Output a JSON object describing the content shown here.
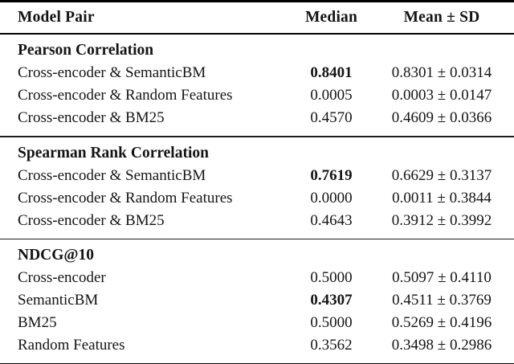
{
  "table": {
    "columns": [
      "Model Pair",
      "Median",
      "Mean ± SD"
    ],
    "sections": [
      {
        "title": "Pearson Correlation",
        "rows": [
          {
            "model": "Cross-encoder & SemanticBM",
            "median": "0.8401",
            "median_bold": true,
            "mean_sd": "0.8301 ± 0.0314"
          },
          {
            "model": "Cross-encoder & Random Features",
            "median": "0.0005",
            "median_bold": false,
            "mean_sd": "0.0003 ± 0.0147"
          },
          {
            "model": "Cross-encoder & BM25",
            "median": "0.4570",
            "median_bold": false,
            "mean_sd": "0.4609 ± 0.0366"
          }
        ]
      },
      {
        "title": "Spearman Rank Correlation",
        "rows": [
          {
            "model": "Cross-encoder & SemanticBM",
            "median": "0.7619",
            "median_bold": true,
            "mean_sd": "0.6629 ± 0.3137"
          },
          {
            "model": "Cross-encoder & Random Features",
            "median": "0.0000",
            "median_bold": false,
            "mean_sd": "0.0011 ± 0.3844"
          },
          {
            "model": "Cross-encoder & BM25",
            "median": "0.4643",
            "median_bold": false,
            "mean_sd": "0.3912 ± 0.3992"
          }
        ]
      },
      {
        "title": "NDCG@10",
        "rows": [
          {
            "model": "Cross-encoder",
            "median": "0.5000",
            "median_bold": false,
            "mean_sd": "0.5097 ± 0.4110"
          },
          {
            "model": "SemanticBM",
            "median": "0.4307",
            "median_bold": true,
            "mean_sd": "0.4511 ± 0.3769"
          },
          {
            "model": "BM25",
            "median": "0.5000",
            "median_bold": false,
            "mean_sd": "0.5269 ± 0.4196"
          },
          {
            "model": "Random Features",
            "median": "0.3562",
            "median_bold": false,
            "mean_sd": "0.3498 ± 0.2986"
          }
        ]
      }
    ]
  }
}
